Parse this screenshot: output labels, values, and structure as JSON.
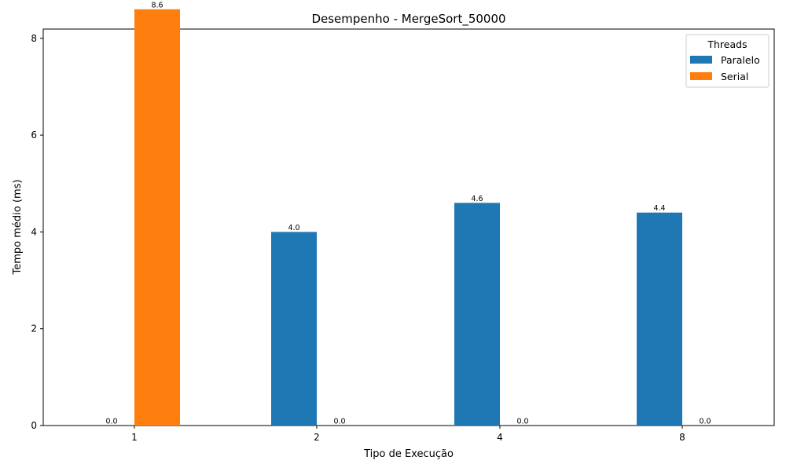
{
  "chart_data": {
    "type": "bar",
    "title": "Desempenho - MergeSort_50000",
    "xlabel": "Tipo de Execução",
    "ylabel": "Tempo médio (ms)",
    "categories": [
      "1",
      "2",
      "4",
      "8"
    ],
    "ylim": [
      0,
      8.6
    ],
    "yticks": [
      "0",
      "2",
      "4",
      "6",
      "8"
    ],
    "series": [
      {
        "name": "Paralelo",
        "color": "#1f77b4",
        "values": [
          0.0,
          4.0,
          4.6,
          4.4
        ],
        "labels": [
          "0.0",
          "4.0",
          "4.6",
          "4.4"
        ]
      },
      {
        "name": "Serial",
        "color": "#ff7f0e",
        "values": [
          8.6,
          0.0,
          0.0,
          0.0
        ],
        "labels": [
          "8.6",
          "0.0",
          "0.0",
          "0.0"
        ]
      }
    ],
    "legend": {
      "title": "Threads",
      "placement": "top-right"
    },
    "grid": false
  }
}
